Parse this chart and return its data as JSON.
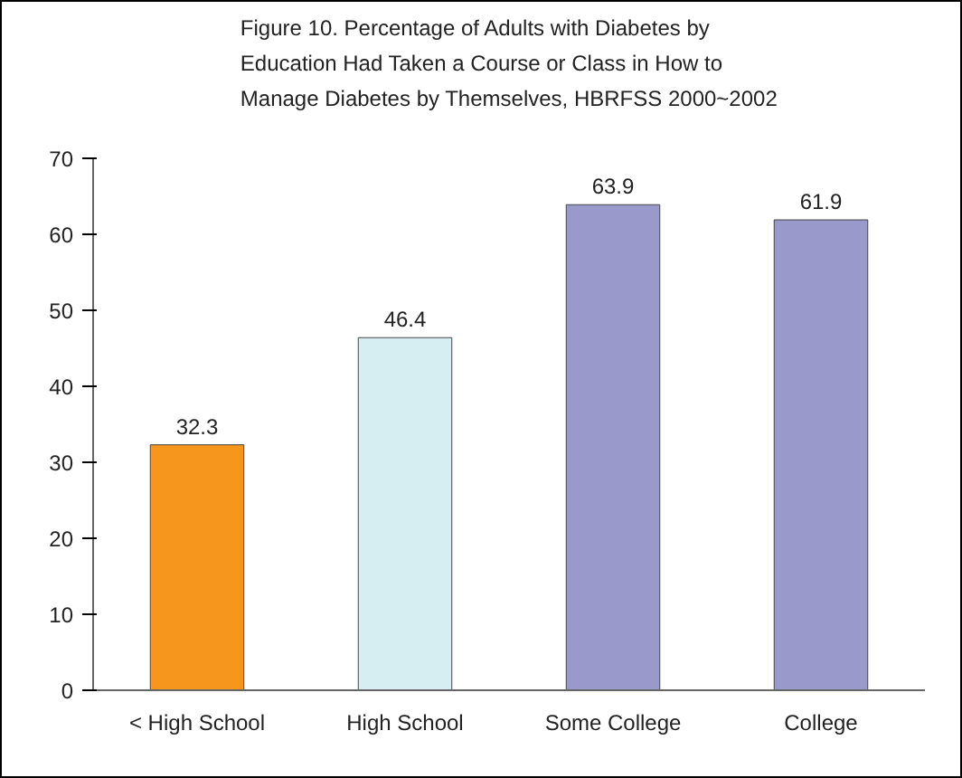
{
  "chart_data": {
    "type": "bar",
    "title": "Figure 10. Percentage of Adults with Diabetes by\nEducation Had Taken a Course or Class in How to\nManage Diabetes by Themselves, HBRFSS 2000~2002",
    "categories": [
      "< High School",
      "High School",
      "Some College",
      "College"
    ],
    "values": [
      32.3,
      46.4,
      63.9,
      61.9
    ],
    "colors": [
      "#f7961d",
      "#d6eef2",
      "#9999cc",
      "#9999cc"
    ],
    "ylim": [
      0,
      70
    ],
    "yticks": [
      0,
      10,
      20,
      30,
      40,
      50,
      60,
      70
    ],
    "data_labels": true,
    "grid": false
  }
}
